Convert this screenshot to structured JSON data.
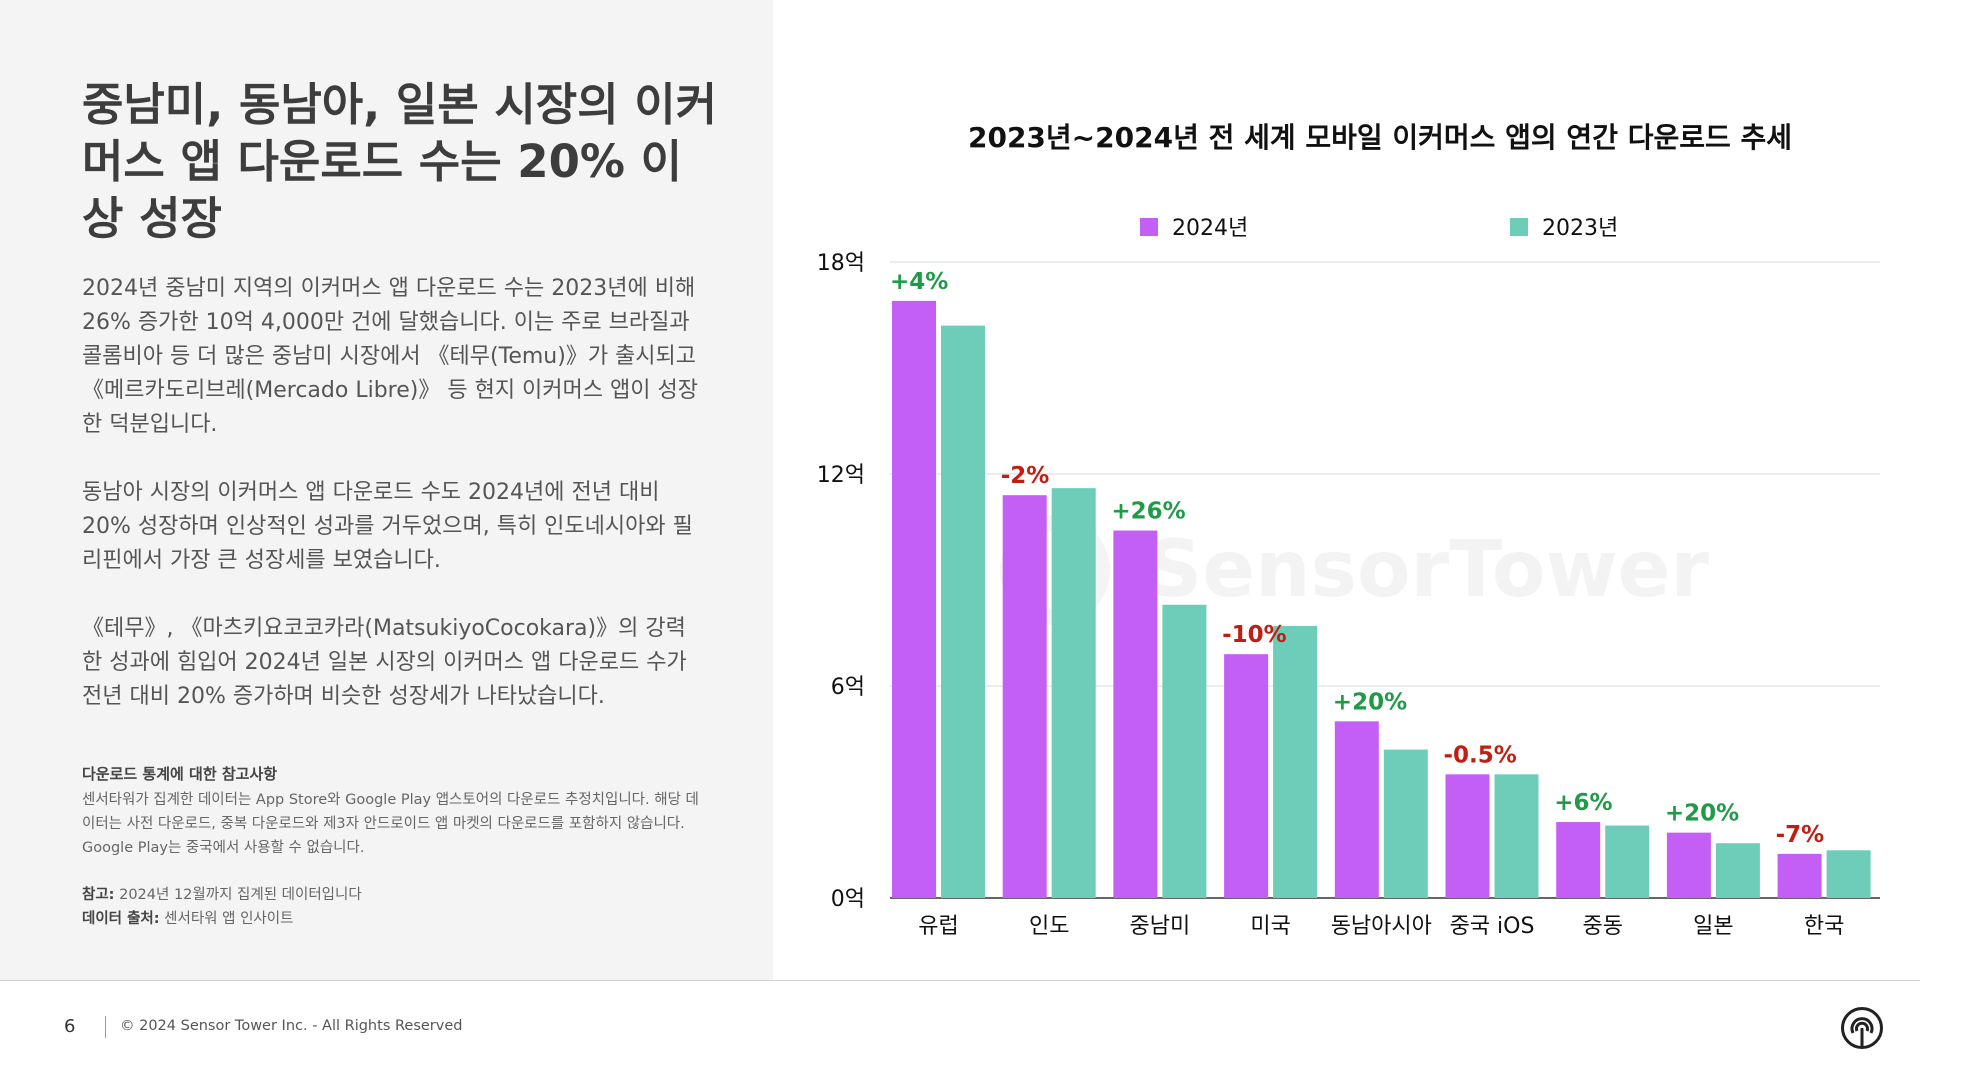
{
  "left": {
    "headline": "중남미, 동남아, 일본 시장의 이커머스 앱 다운로드 수는 20% 이상 성장",
    "paragraphs": [
      "2024년 중남미 지역의 이커머스 앱 다운로드 수는 2023년에 비해 26% 증가한 10억 4,000만 건에 달했습니다. 이는 주로 브라질과 콜롬비아 등 더 많은 중남미 시장에서 《테무(Temu)》가 출시되고 《메르카도리브레(Mercado Libre)》 등 현지 이커머스 앱이 성장한 덕분입니다.",
      "동남아 시장의 이커머스 앱 다운로드 수도 2024년에 전년 대비 20% 성장하며 인상적인 성과를 거두었으며, 특히 인도네시아와 필리핀에서 가장 큰 성장세를 보였습니다.",
      "《테무》, 《마츠키요코코카라(MatsukiyoCocokara)》의 강력한 성과에 힘입어 2024년 일본 시장의 이커머스 앱 다운로드 수가 전년 대비 20% 증가하며 비슷한 성장세가 나타났습니다."
    ],
    "note_title": "다운로드 통계에 대한 참고사항",
    "note_text": "센서타워가 집계한 데이터는 App Store와 Google Play 앱스토어의 다운로드 추정치입니다. 해당 데이터는 사전 다운로드, 중복 다운로드와 제3자 안드로이드 앱 마켓의 다운로드를 포함하지 않습니다. Google Play는 중국에서 사용할 수 없습니다.",
    "ref_label": "참고:",
    "ref_text": "2024년 12월까지 집계된 데이터입니다",
    "source_label": "데이터 출처:",
    "source_text": "센서타워 앱 인사이트"
  },
  "footer": {
    "page_number": "6",
    "copyright": "© 2024 Sensor Tower Inc. - All Rights Reserved"
  },
  "watermark": "SensorTower",
  "colors": {
    "series_2024": "#c45ff5",
    "series_2023": "#6dcdb8",
    "positive": "#1f9a47",
    "negative": "#c01e12"
  },
  "chart_data": {
    "type": "bar",
    "title": "2023년~2024년 전 세계 모바일 이커머스 앱의 연간 다운로드 추세",
    "categories": [
      "유럽",
      "인도",
      "중남미",
      "미국",
      "동남아시아",
      "중국 iOS",
      "중동",
      "일본",
      "한국"
    ],
    "series": [
      {
        "name": "2024년",
        "values": [
          16.9,
          11.4,
          10.4,
          6.9,
          5.0,
          3.5,
          2.15,
          1.85,
          1.25
        ]
      },
      {
        "name": "2023년",
        "values": [
          16.2,
          11.6,
          8.3,
          7.7,
          4.2,
          3.5,
          2.05,
          1.55,
          1.35
        ]
      }
    ],
    "change_labels": [
      "+4%",
      "-2%",
      "+26%",
      "-10%",
      "+20%",
      "-0.5%",
      "+6%",
      "+20%",
      "-7%"
    ],
    "y_ticks": [
      "0억",
      "6억",
      "12억",
      "18억"
    ],
    "y_tick_values": [
      0,
      6,
      12,
      18
    ],
    "ylim": [
      0,
      18
    ],
    "grid": true,
    "legend_position": "top"
  }
}
